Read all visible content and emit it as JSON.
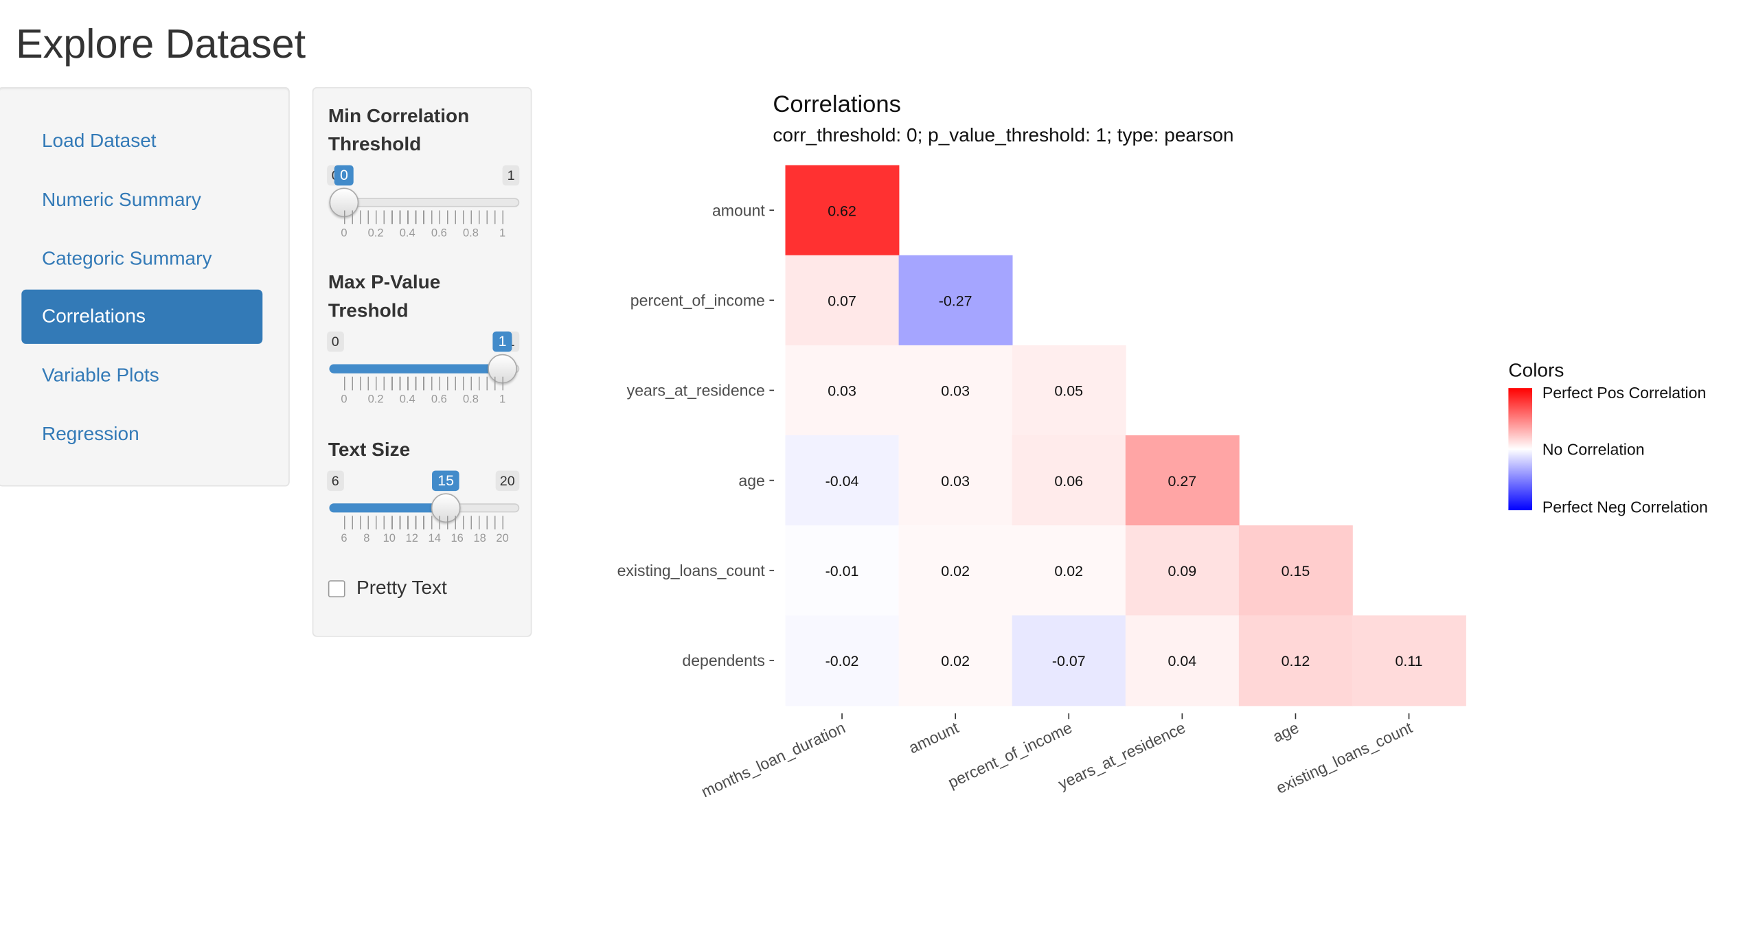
{
  "app": {
    "title": "Explore Dataset"
  },
  "nav": {
    "items": [
      {
        "label": "Load Dataset",
        "active": false
      },
      {
        "label": "Numeric Summary",
        "active": false
      },
      {
        "label": "Categoric Summary",
        "active": false
      },
      {
        "label": "Correlations",
        "active": true
      },
      {
        "label": "Variable Plots",
        "active": false
      },
      {
        "label": "Regression",
        "active": false
      }
    ]
  },
  "controls": {
    "min_corr": {
      "label": "Min Correlation Threshold",
      "min": "0",
      "max": "1",
      "value": "0",
      "fraction": 0,
      "tick_labels": [
        "0",
        "0.2",
        "0.4",
        "0.6",
        "0.8",
        "1"
      ]
    },
    "max_p": {
      "label": "Max P-Value Treshold",
      "min": "0",
      "max": "1",
      "value": "1",
      "fraction": 1,
      "tick_labels": [
        "0",
        "0.2",
        "0.4",
        "0.6",
        "0.8",
        "1"
      ]
    },
    "text_size": {
      "label": "Text Size",
      "min": "6",
      "max": "20",
      "value": "15",
      "fraction": 0.6429,
      "tick_labels": [
        "6",
        "8",
        "10",
        "12",
        "14",
        "16",
        "18",
        "20"
      ]
    },
    "pretty_text": {
      "label": "Pretty Text",
      "checked": false
    }
  },
  "chart_data": {
    "type": "heatmap",
    "title": "Correlations",
    "subtitle": "corr_threshold: 0; p_value_threshold: 1; type: pearson",
    "x_labels": [
      "months_loan_duration",
      "amount",
      "percent_of_income",
      "years_at_residence",
      "age",
      "existing_loans_count"
    ],
    "y_labels": [
      "amount",
      "percent_of_income",
      "years_at_residence",
      "age",
      "existing_loans_count",
      "dependents"
    ],
    "values": [
      [
        0.62,
        null,
        null,
        null,
        null,
        null
      ],
      [
        0.07,
        -0.27,
        null,
        null,
        null,
        null
      ],
      [
        0.03,
        0.03,
        0.05,
        null,
        null,
        null
      ],
      [
        -0.04,
        0.03,
        0.06,
        0.27,
        null,
        null
      ],
      [
        -0.01,
        0.02,
        0.02,
        0.09,
        0.15,
        null
      ],
      [
        -0.02,
        0.02,
        -0.07,
        0.04,
        0.12,
        0.11
      ]
    ],
    "value_labels": [
      [
        "0.62",
        "",
        "",
        "",
        "",
        ""
      ],
      [
        "0.07",
        "-0.27",
        "",
        "",
        "",
        ""
      ],
      [
        "0.03",
        "0.03",
        "0.05",
        "",
        "",
        ""
      ],
      [
        "-0.04",
        "0.03",
        "0.06",
        "0.27",
        "",
        ""
      ],
      [
        "-0.01",
        "0.02",
        "0.02",
        "0.09",
        "0.15",
        ""
      ],
      [
        "-0.02",
        "0.02",
        "-0.07",
        "0.04",
        "0.12",
        "0.11"
      ]
    ],
    "legend": {
      "title": "Colors",
      "placement": "right",
      "entries": [
        "Perfect Pos Correlation",
        "No Correlation",
        "Perfect Neg Correlation"
      ]
    },
    "colors": {
      "positive": "#ff0000",
      "neutral": "#ffffff",
      "negative": "#0000ff"
    }
  }
}
